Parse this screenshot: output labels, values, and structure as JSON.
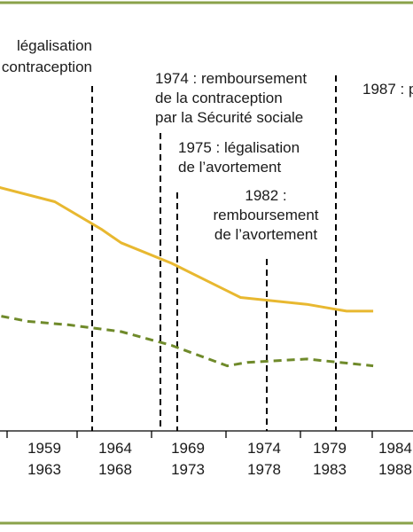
{
  "colors": {
    "frame": "#8aa24a",
    "series_solid": "#e8b830",
    "series_dashed": "#6f8a2a",
    "event_line": "#000000",
    "axis": "#000000",
    "text": "#1a1a1a"
  },
  "chart_data": {
    "type": "line",
    "categories": [
      "…",
      "1959–1963",
      "1964–1968",
      "1969–1973",
      "1974–1978",
      "1979–1983",
      "1984–1988"
    ],
    "tick_labels": [
      {
        "top": "1959",
        "bottom": "1963"
      },
      {
        "top": "1964",
        "bottom": "1968"
      },
      {
        "top": "1969",
        "bottom": "1973"
      },
      {
        "top": "1974",
        "bottom": "1978"
      },
      {
        "top": "1979",
        "bottom": "1983"
      },
      {
        "top": "1984",
        "bottom": "1988"
      }
    ],
    "series": [
      {
        "style": "solid",
        "x": [
          1955,
          1961,
          1964.5,
          1966,
          1969.8,
          1975,
          1980,
          1983,
          1985
        ],
        "y": [
          76,
          73,
          69,
          67,
          64,
          59,
          58,
          57,
          57
        ]
      },
      {
        "style": "dashed",
        "x": [
          1955,
          1959,
          1962,
          1966,
          1969.8,
          1974,
          1975.5,
          1980,
          1985
        ],
        "y": [
          57,
          55.5,
          55,
          54,
          52,
          49,
          49.5,
          50,
          49
        ]
      }
    ],
    "events": [
      {
        "year": 1967,
        "lines": [
          "légalisation",
          "contraception"
        ]
      },
      {
        "year": 1974,
        "lines": [
          "1974 : remboursement",
          "de la contraception",
          "par la Sécurité sociale"
        ]
      },
      {
        "year": 1975,
        "lines": [
          "1975 : légalisation",
          "de l’avortement"
        ]
      },
      {
        "year": 1982,
        "lines": [
          "1982 :",
          "remboursement",
          "de l’avortement"
        ]
      },
      {
        "year": 1987,
        "lines": [
          "1987 : p"
        ]
      }
    ],
    "xlim": [
      1954,
      1988
    ],
    "ylim": [
      40,
      85
    ],
    "grid": false,
    "legend": "none"
  }
}
